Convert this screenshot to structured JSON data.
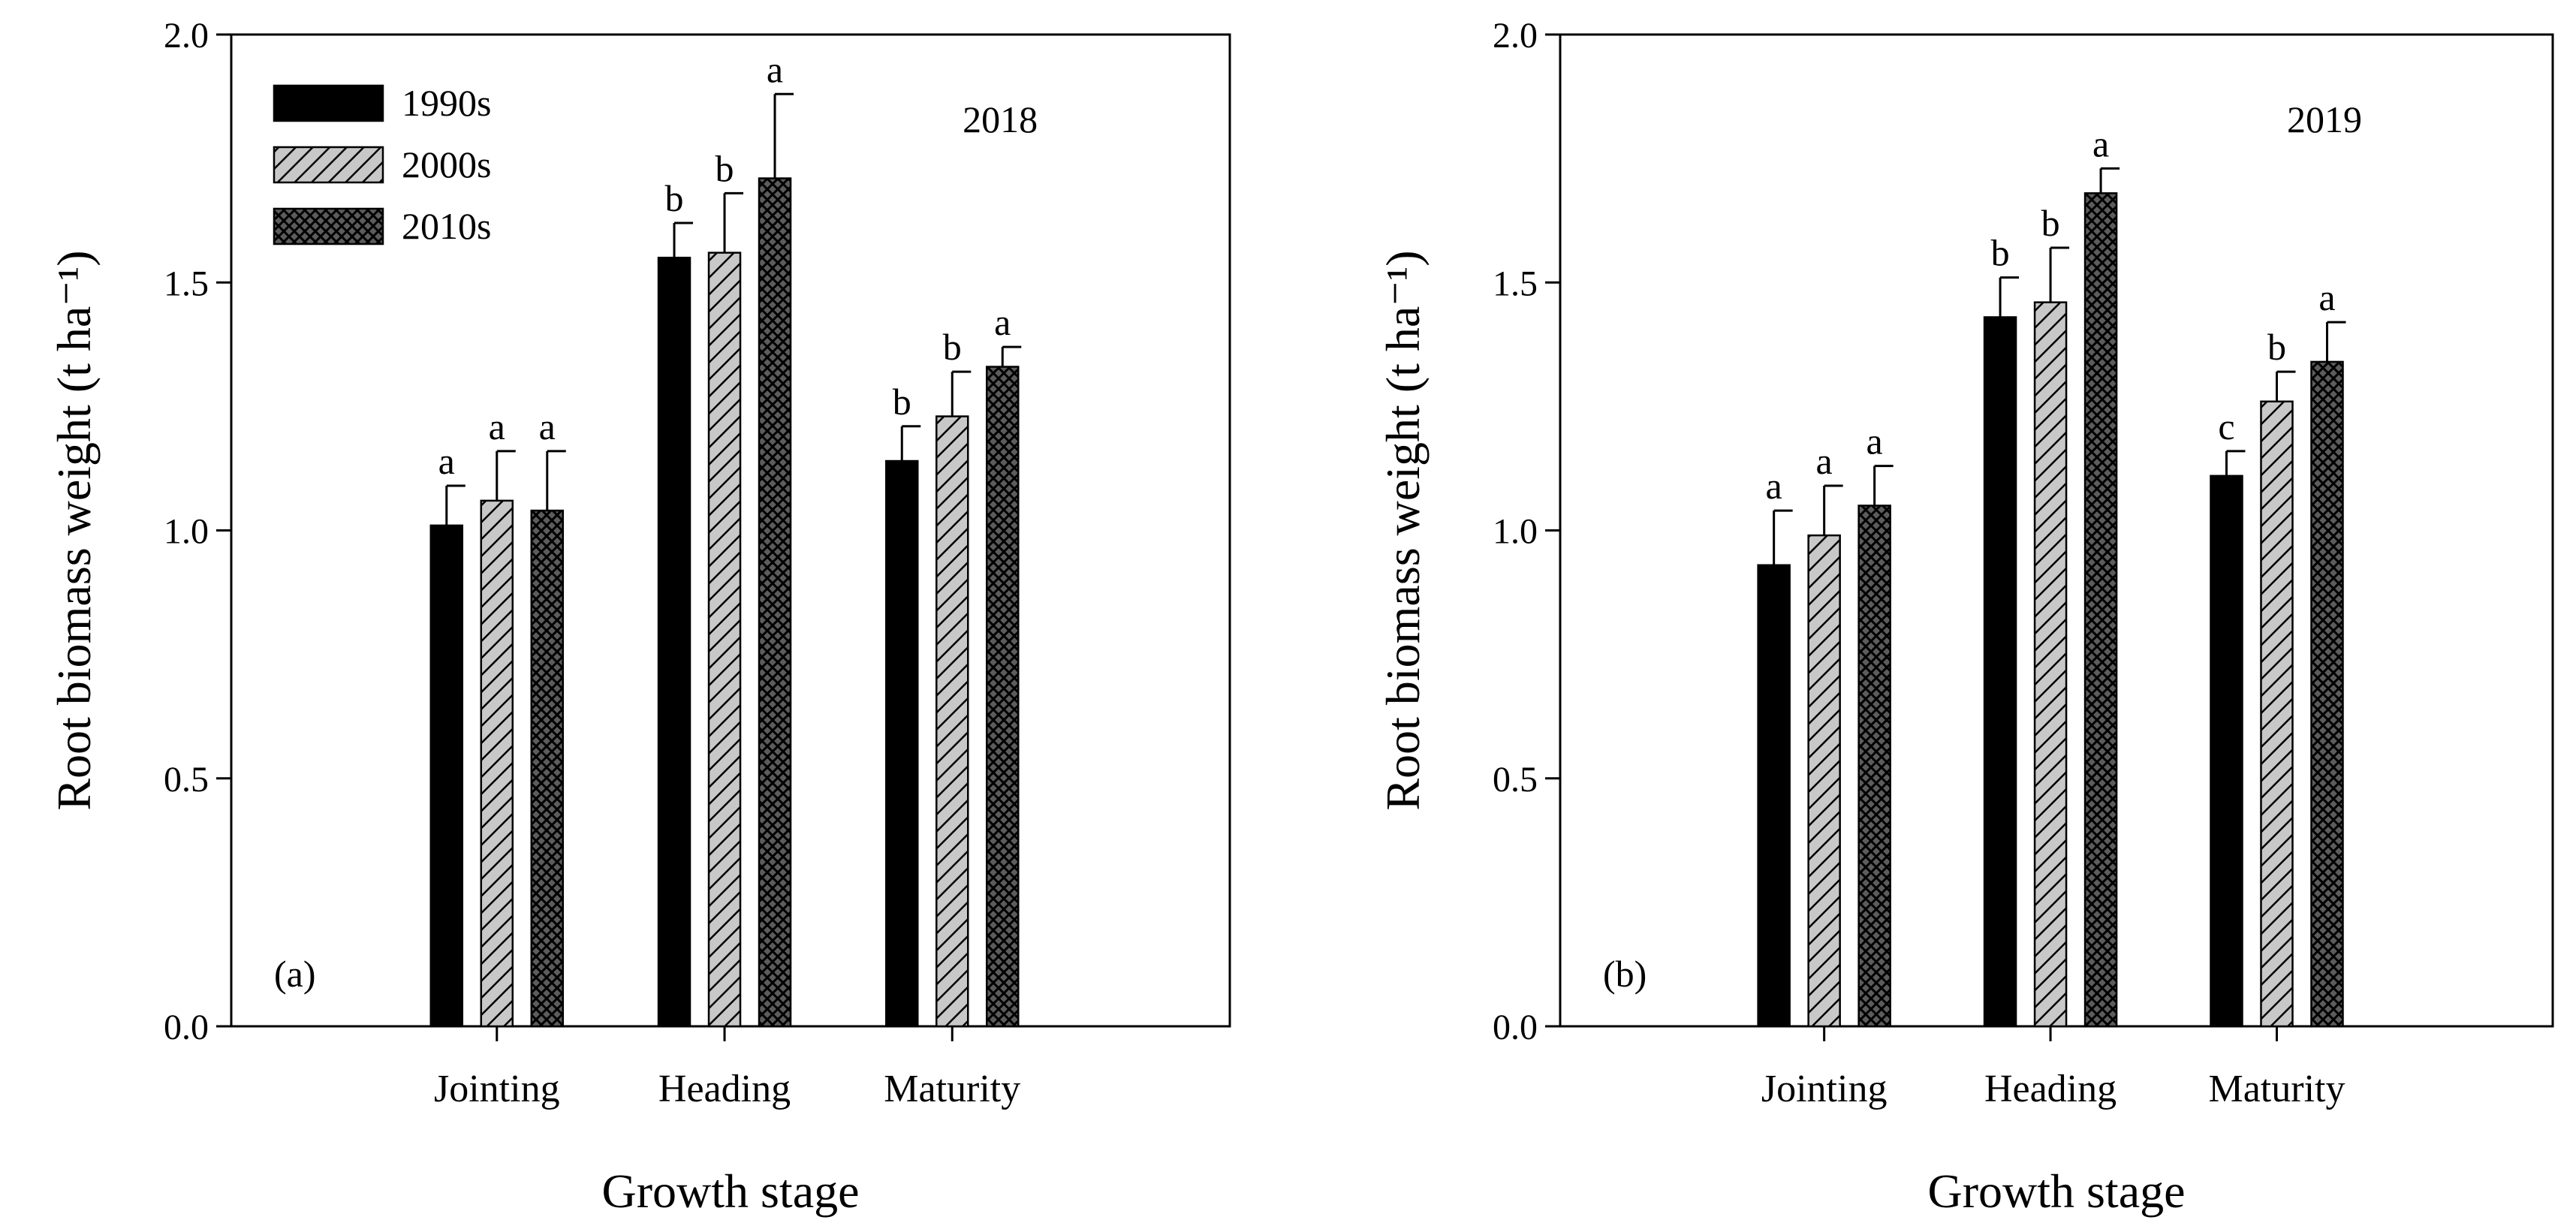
{
  "chart_data": [
    {
      "type": "bar",
      "panel_label": "(a)",
      "year_label": "2018",
      "xlabel": "Growth stage",
      "ylabel": "Root biomass weight (t ha⁻¹)",
      "ylim": [
        0,
        2.0
      ],
      "yticks": [
        "0.0",
        "0.5",
        "1.0",
        "1.5",
        "2.0"
      ],
      "legend_position": "top-left",
      "categories": [
        "Jointing",
        "Heading",
        "Maturity"
      ],
      "series": [
        {
          "name": "1990s",
          "values": [
            1.01,
            1.55,
            1.14
          ],
          "errors": [
            0.08,
            0.07,
            0.07
          ],
          "letters": [
            "a",
            "b",
            "b"
          ]
        },
        {
          "name": "2000s",
          "values": [
            1.06,
            1.56,
            1.23
          ],
          "errors": [
            0.1,
            0.12,
            0.09
          ],
          "letters": [
            "a",
            "b",
            "b"
          ]
        },
        {
          "name": "2010s",
          "values": [
            1.04,
            1.71,
            1.33
          ],
          "errors": [
            0.12,
            0.17,
            0.04
          ],
          "letters": [
            "a",
            "a",
            "a"
          ]
        }
      ]
    },
    {
      "type": "bar",
      "panel_label": "(b)",
      "year_label": "2019",
      "xlabel": "Growth stage",
      "ylabel": "Root biomass weight (t ha⁻¹)",
      "ylim": [
        0,
        2.0
      ],
      "yticks": [
        "0.0",
        "0.5",
        "1.0",
        "1.5",
        "2.0"
      ],
      "categories": [
        "Jointing",
        "Heading",
        "Maturity"
      ],
      "series": [
        {
          "name": "1990s",
          "values": [
            0.93,
            1.43,
            1.11
          ],
          "errors": [
            0.11,
            0.08,
            0.05
          ],
          "letters": [
            "a",
            "b",
            "c"
          ]
        },
        {
          "name": "2000s",
          "values": [
            0.99,
            1.46,
            1.26
          ],
          "errors": [
            0.1,
            0.11,
            0.06
          ],
          "letters": [
            "a",
            "b",
            "b"
          ]
        },
        {
          "name": "2010s",
          "values": [
            1.05,
            1.68,
            1.34
          ],
          "errors": [
            0.08,
            0.05,
            0.08
          ],
          "letters": [
            "a",
            "a",
            "a"
          ]
        }
      ]
    }
  ]
}
